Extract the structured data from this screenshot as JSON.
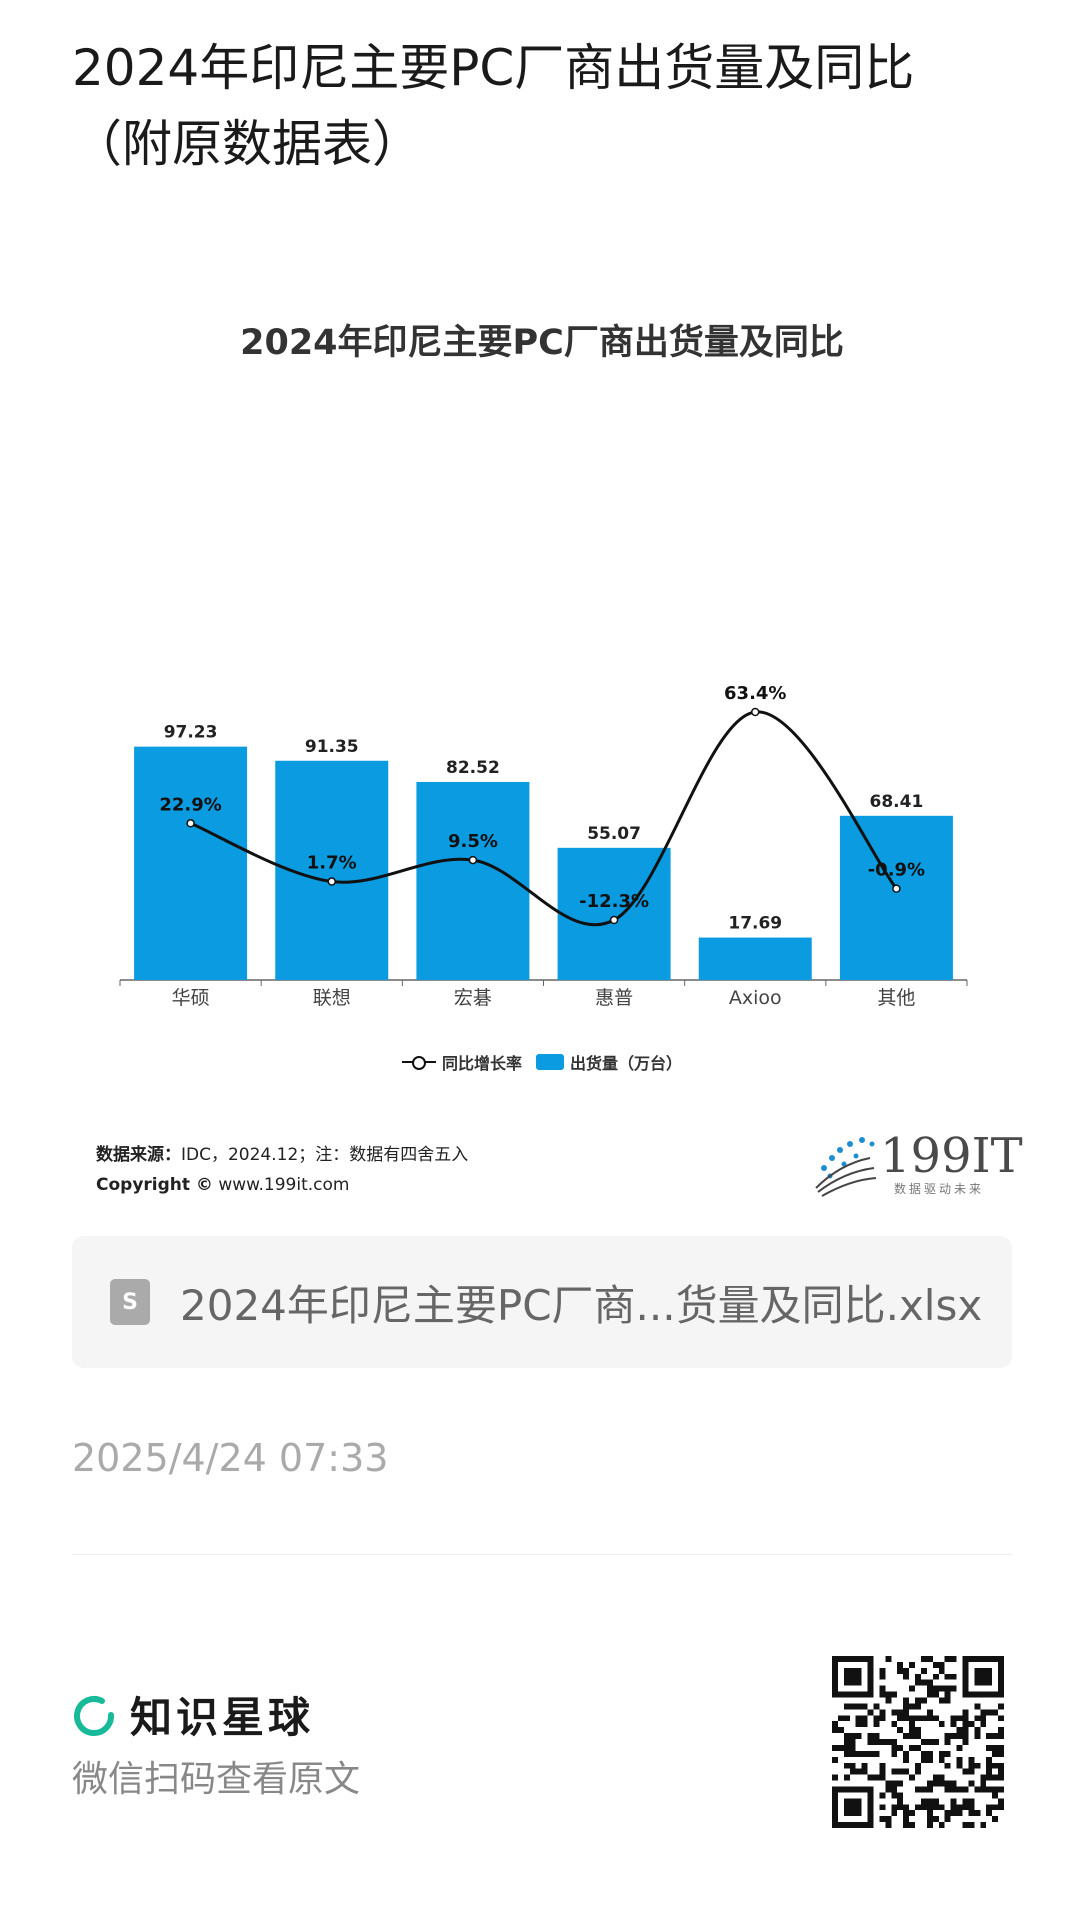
{
  "page": {
    "title": "2024年印尼主要PC厂商出货量及同比（附原数据表）"
  },
  "chart_data": {
    "type": "bar",
    "title": "2024年印尼主要PC厂商出货量及同比",
    "categories": [
      "华硕",
      "联想",
      "宏碁",
      "惠普",
      "Axioo",
      "其他"
    ],
    "series": [
      {
        "name": "出货量（万台）",
        "type": "bar",
        "values": [
          97.23,
          91.35,
          82.52,
          55.07,
          17.69,
          68.41
        ],
        "labels": [
          "97.23",
          "91.35",
          "82.52",
          "55.07",
          "17.69",
          "68.41"
        ],
        "color": "#0b9be0"
      },
      {
        "name": "同比增长率",
        "type": "line",
        "values": [
          22.9,
          1.7,
          9.5,
          -12.3,
          63.4,
          -0.9
        ],
        "labels": [
          "22.9%",
          "1.7%",
          "9.5%",
          "-12.3%",
          "63.4%",
          "-0.9%"
        ],
        "color": "#111111"
      }
    ],
    "legend_position": "bottom",
    "grid": false
  },
  "source_note": {
    "label": "数据来源：",
    "text": "IDC，2024.12；注：数据有四舍五入",
    "copyright_label": "Copyright ©",
    "copyright_site": "www.199it.com"
  },
  "brand": {
    "name": "199IT",
    "slogan": "数据驱动未来"
  },
  "file": {
    "icon": "spreadsheet-file-icon",
    "icon_letter": "S",
    "name": "2024年印尼主要PC厂商...货量及同比.xlsx"
  },
  "timestamp": "2025/4/24 07:33",
  "footer": {
    "app_name": "知识星球",
    "scan_hint": "微信扫码查看原文",
    "accent": "#16b998"
  }
}
